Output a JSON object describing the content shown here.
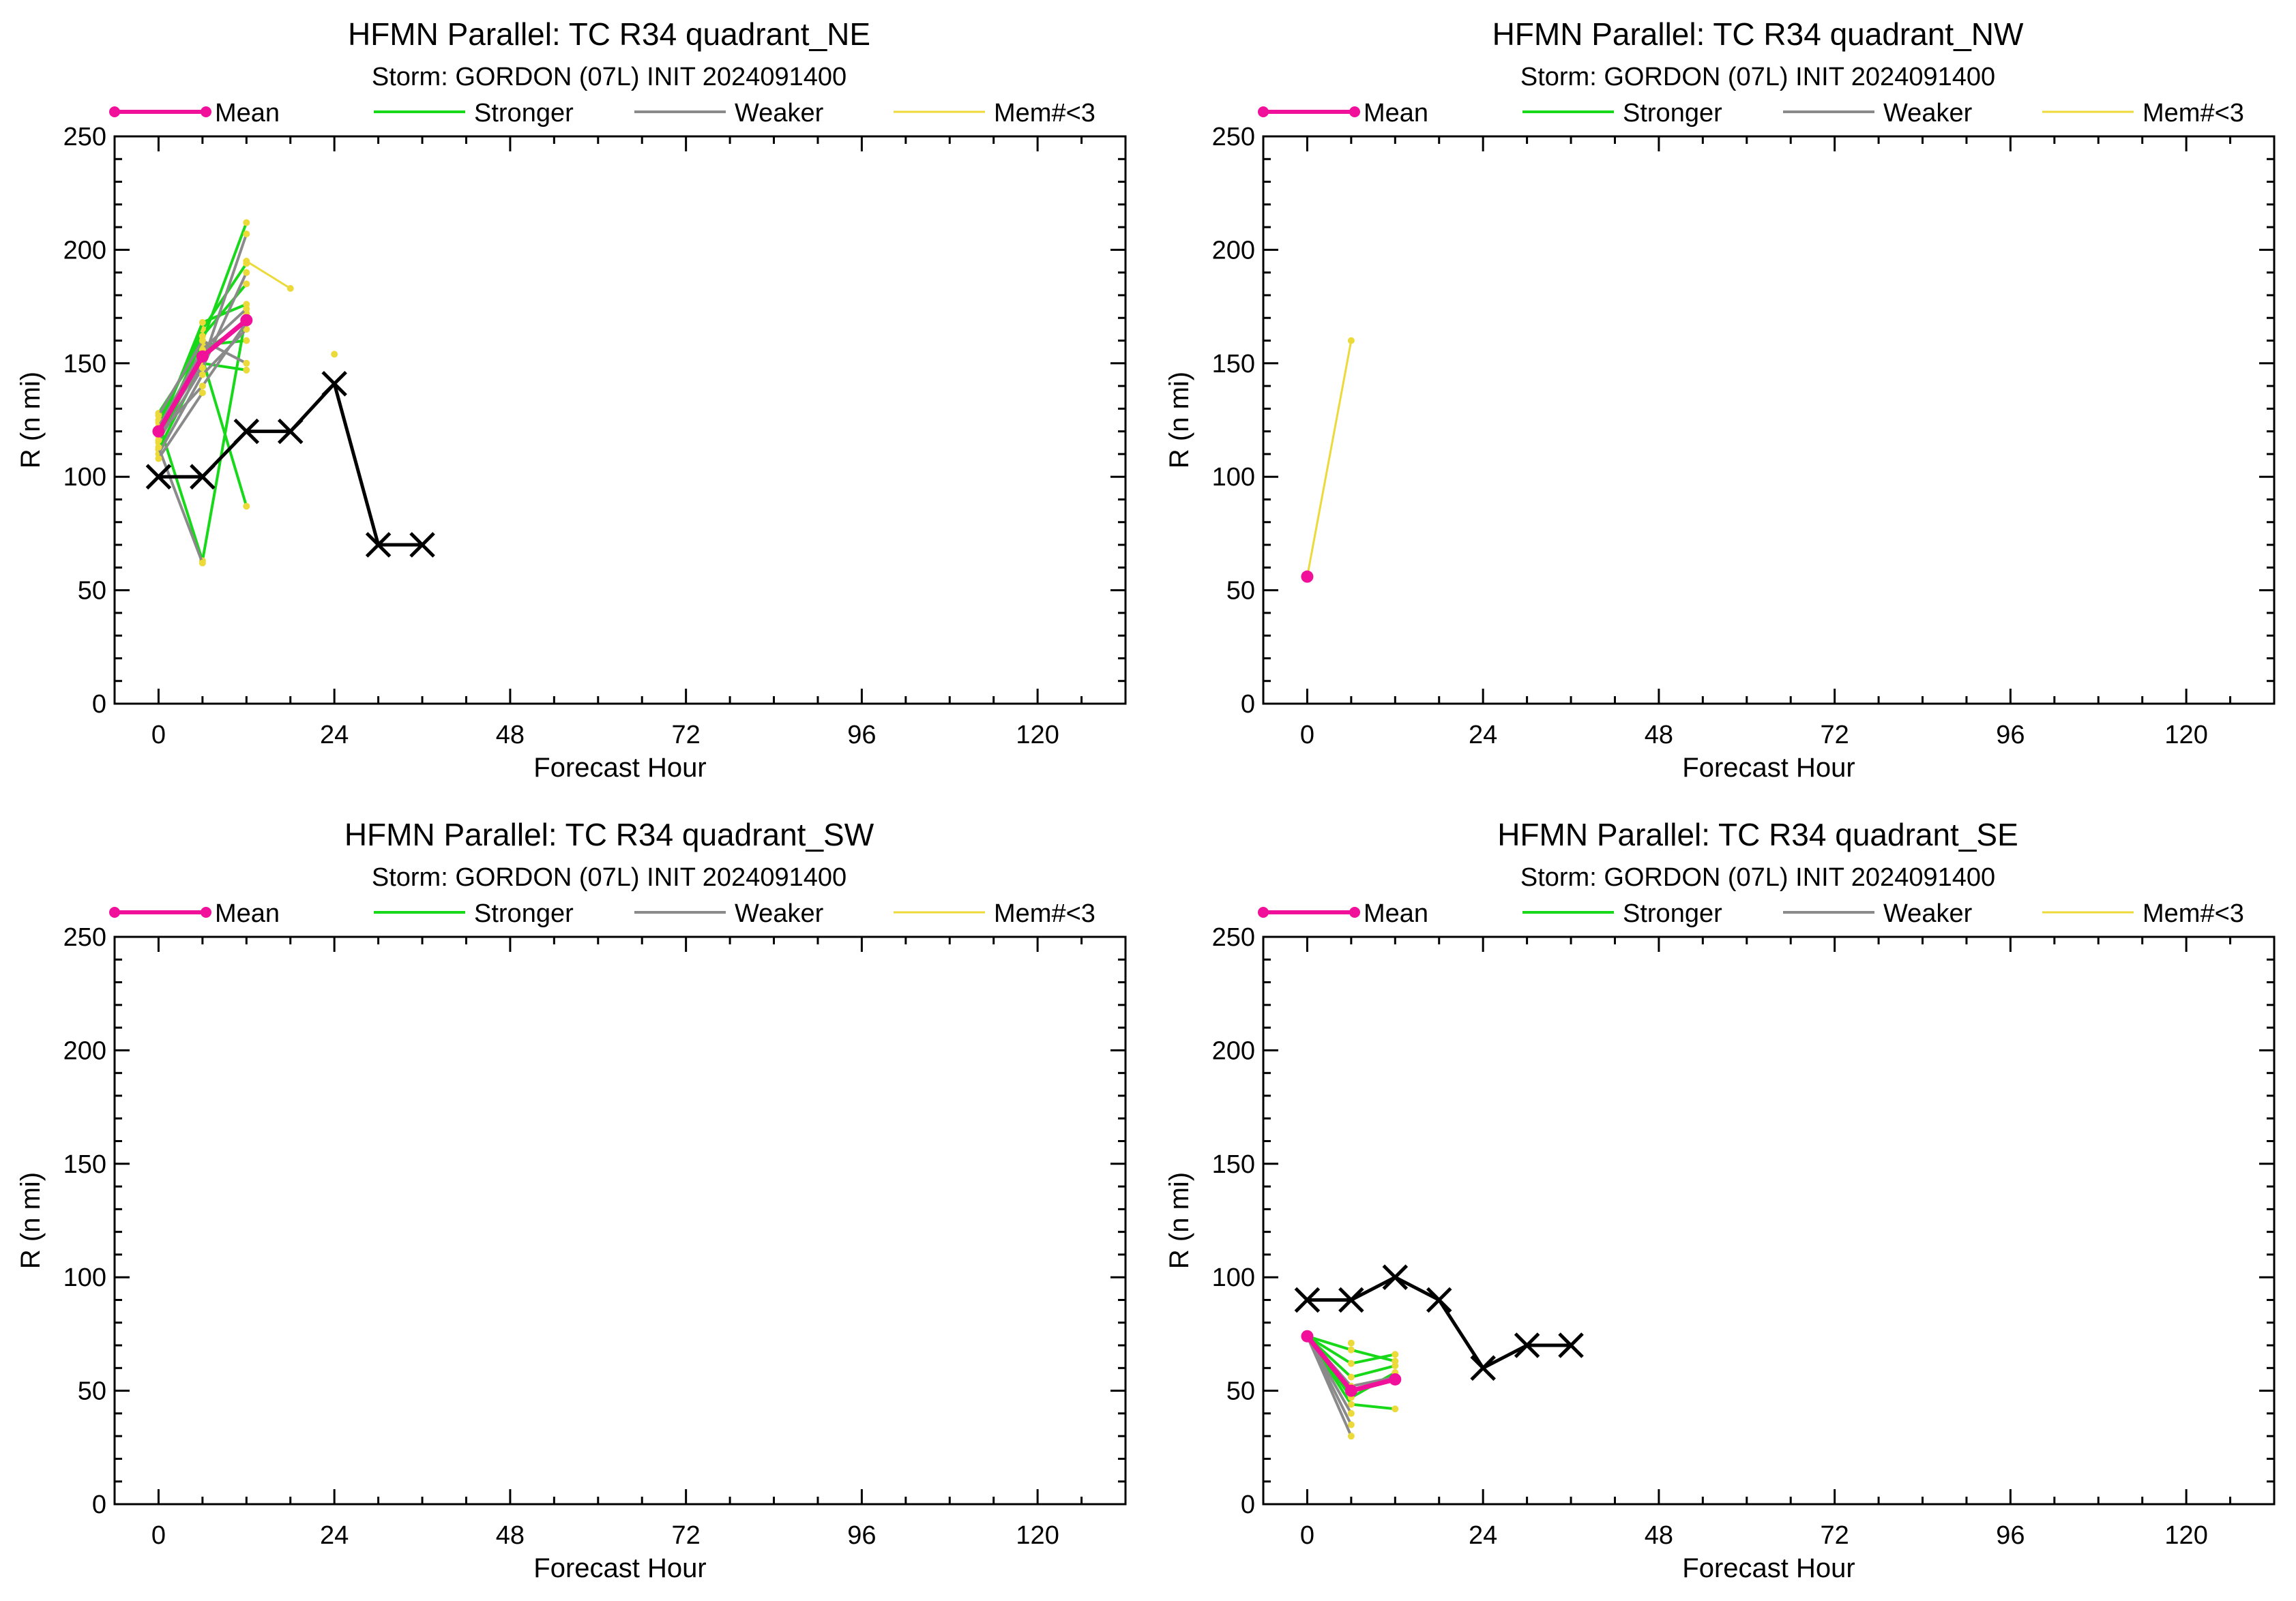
{
  "colors": {
    "mean": "#f0109a",
    "stronger": "#18d81a",
    "weaker": "#8a8a8a",
    "mem_lt3": "#ecd93a",
    "best_track": "#000000"
  },
  "chart_data": [
    {
      "type": "line",
      "title": "HFMN Parallel: TC  R34 quadrant_NE",
      "subtitle": "Storm: GORDON (07L) INIT 2024091400",
      "xlabel": "Forecast Hour",
      "ylabel": "R (n mi)",
      "xlim": [
        -6,
        132
      ],
      "ylim": [
        0,
        250
      ],
      "xticks": [
        "0",
        "24",
        "48",
        "72",
        "96",
        "120"
      ],
      "yticks": [
        "0",
        "50",
        "100",
        "150",
        "200",
        "250"
      ],
      "legend": [
        "Mean",
        "Stronger",
        "Weaker",
        "Mem#<3"
      ],
      "legend_position": "top",
      "best_track": {
        "x": [
          0,
          6,
          12,
          18,
          24,
          30,
          36
        ],
        "y": [
          100,
          100,
          120,
          120,
          141,
          70,
          70
        ]
      },
      "mean": {
        "x": [
          0,
          6,
          12
        ],
        "y": [
          120,
          153,
          169
        ]
      },
      "members": [
        {
          "group": "stronger",
          "x": [
            0,
            6,
            12
          ],
          "y": [
            118,
            160,
            212
          ]
        },
        {
          "group": "stronger",
          "x": [
            0,
            6,
            12
          ],
          "y": [
            122,
            165,
            194
          ]
        },
        {
          "group": "stronger",
          "x": [
            0,
            6,
            12
          ],
          "y": [
            125,
            162,
            185
          ]
        },
        {
          "group": "stronger",
          "x": [
            0,
            6,
            12
          ],
          "y": [
            120,
            168,
            176
          ]
        },
        {
          "group": "stronger",
          "x": [
            0,
            6,
            12
          ],
          "y": [
            115,
            155,
            168
          ]
        },
        {
          "group": "stronger",
          "x": [
            0,
            6,
            12
          ],
          "y": [
            128,
            158,
            160
          ]
        },
        {
          "group": "stronger",
          "x": [
            0,
            6,
            12
          ],
          "y": [
            112,
            150,
            147
          ]
        },
        {
          "group": "stronger",
          "x": [
            0,
            6,
            12
          ],
          "y": [
            118,
            152,
            87
          ]
        },
        {
          "group": "stronger",
          "x": [
            0,
            6,
            12
          ],
          "y": [
            124,
            63,
            172
          ]
        },
        {
          "group": "weaker",
          "x": [
            0,
            6,
            12
          ],
          "y": [
            120,
            150,
            207
          ]
        },
        {
          "group": "weaker",
          "x": [
            0,
            6,
            12
          ],
          "y": [
            116,
            148,
            190
          ]
        },
        {
          "group": "weaker",
          "x": [
            0,
            6,
            12
          ],
          "y": [
            122,
            156,
            174
          ]
        },
        {
          "group": "weaker",
          "x": [
            0,
            6,
            12
          ],
          "y": [
            110,
            145,
            165
          ]
        },
        {
          "group": "weaker",
          "x": [
            0,
            6,
            12
          ],
          "y": [
            127,
            160,
            150
          ]
        },
        {
          "group": "weaker",
          "x": [
            0,
            6,
            12
          ],
          "y": [
            119,
            140,
            168
          ]
        },
        {
          "group": "weaker",
          "x": [
            0,
            6
          ],
          "y": [
            113,
            62
          ]
        },
        {
          "group": "weaker",
          "x": [
            0,
            6
          ],
          "y": [
            108,
            137
          ]
        },
        {
          "group": "mem_lt3",
          "x": [
            12,
            18
          ],
          "y": [
            195,
            183
          ]
        },
        {
          "group": "mem_lt3",
          "x": [
            24
          ],
          "y": [
            154
          ]
        }
      ]
    },
    {
      "type": "line",
      "title": "HFMN Parallel: TC  R34 quadrant_NW",
      "subtitle": "Storm: GORDON (07L) INIT 2024091400",
      "xlabel": "Forecast Hour",
      "ylabel": "R (n mi)",
      "xlim": [
        -6,
        132
      ],
      "ylim": [
        0,
        250
      ],
      "xticks": [
        "0",
        "24",
        "48",
        "72",
        "96",
        "120"
      ],
      "yticks": [
        "0",
        "50",
        "100",
        "150",
        "200",
        "250"
      ],
      "legend": [
        "Mean",
        "Stronger",
        "Weaker",
        "Mem#<3"
      ],
      "legend_position": "top",
      "best_track": {
        "x": [],
        "y": []
      },
      "mean": {
        "x": [
          0
        ],
        "y": [
          56
        ]
      },
      "members": [
        {
          "group": "mem_lt3",
          "x": [
            0,
            6
          ],
          "y": [
            56,
            160
          ]
        }
      ]
    },
    {
      "type": "line",
      "title": "HFMN Parallel: TC  R34 quadrant_SW",
      "subtitle": "Storm: GORDON (07L) INIT 2024091400",
      "xlabel": "Forecast Hour",
      "ylabel": "R (n mi)",
      "xlim": [
        -6,
        132
      ],
      "ylim": [
        0,
        250
      ],
      "xticks": [
        "0",
        "24",
        "48",
        "72",
        "96",
        "120"
      ],
      "yticks": [
        "0",
        "50",
        "100",
        "150",
        "200",
        "250"
      ],
      "legend": [
        "Mean",
        "Stronger",
        "Weaker",
        "Mem#<3"
      ],
      "legend_position": "top",
      "best_track": {
        "x": [],
        "y": []
      },
      "mean": {
        "x": [],
        "y": []
      },
      "members": []
    },
    {
      "type": "line",
      "title": "HFMN Parallel: TC  R34 quadrant_SE",
      "subtitle": "Storm: GORDON (07L) INIT 2024091400",
      "xlabel": "Forecast Hour",
      "ylabel": "R (n mi)",
      "xlim": [
        -6,
        132
      ],
      "ylim": [
        0,
        250
      ],
      "xticks": [
        "0",
        "24",
        "48",
        "72",
        "96",
        "120"
      ],
      "yticks": [
        "0",
        "50",
        "100",
        "150",
        "200",
        "250"
      ],
      "legend": [
        "Mean",
        "Stronger",
        "Weaker",
        "Mem#<3"
      ],
      "legend_position": "top",
      "best_track": {
        "x": [
          0,
          6,
          12,
          18,
          24,
          30,
          36
        ],
        "y": [
          90,
          90,
          100,
          90,
          60,
          70,
          70
        ]
      },
      "mean": {
        "x": [
          0,
          6,
          12
        ],
        "y": [
          74,
          50,
          55
        ]
      },
      "members": [
        {
          "group": "stronger",
          "x": [
            0,
            6,
            12
          ],
          "y": [
            74,
            68,
            63
          ]
        },
        {
          "group": "stronger",
          "x": [
            0,
            6,
            12
          ],
          "y": [
            74,
            62,
            66
          ]
        },
        {
          "group": "stronger",
          "x": [
            0,
            6,
            12
          ],
          "y": [
            74,
            56,
            61
          ]
        },
        {
          "group": "stronger",
          "x": [
            0,
            6,
            12
          ],
          "y": [
            74,
            44,
            42
          ]
        },
        {
          "group": "stronger",
          "x": [
            0,
            6,
            12
          ],
          "y": [
            74,
            47,
            58
          ]
        },
        {
          "group": "weaker",
          "x": [
            0,
            6,
            12
          ],
          "y": [
            74,
            52,
            56
          ]
        },
        {
          "group": "weaker",
          "x": [
            0,
            6
          ],
          "y": [
            74,
            40
          ]
        },
        {
          "group": "weaker",
          "x": [
            0,
            6
          ],
          "y": [
            74,
            35
          ]
        },
        {
          "group": "weaker",
          "x": [
            0,
            6
          ],
          "y": [
            74,
            30
          ]
        },
        {
          "group": "mem_lt3",
          "x": [
            6
          ],
          "y": [
            71
          ]
        },
        {
          "group": "mem_lt3",
          "x": [
            12
          ],
          "y": [
            66
          ]
        }
      ]
    }
  ]
}
